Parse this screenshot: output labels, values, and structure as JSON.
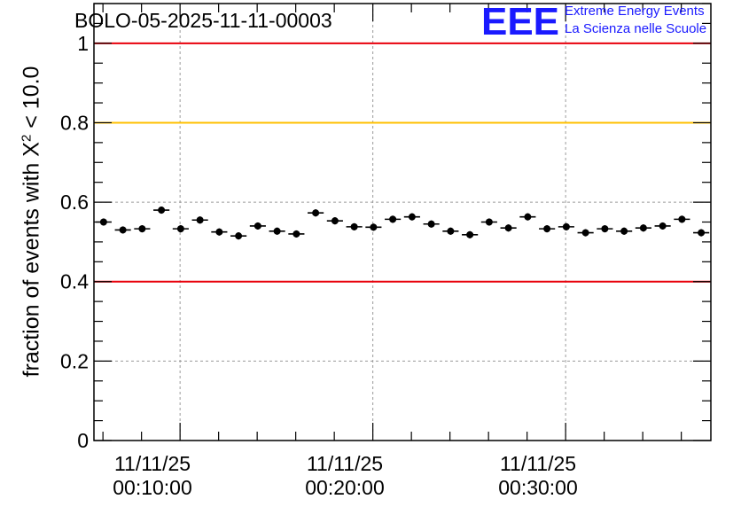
{
  "header": {
    "title": "BOLO-05-2025-11-11-00003",
    "logo_mark": "EEE",
    "logo_line1": "Extreme Energy Events",
    "logo_line2": "La Scienza nelle Scuole"
  },
  "colors": {
    "threshold_red": "#e8000b",
    "threshold_yellow": "#ffc000",
    "points": "#000000",
    "logo": "#1a1aff"
  },
  "chart_data": {
    "type": "scatter",
    "title": "BOLO-05-2025-11-11-00003",
    "ylabel": "fraction of events with X",
    "ylabel_sup": "2",
    "ylabel_tail": " < 10.0",
    "ylim": [
      0,
      1.1
    ],
    "yticks": [
      0,
      0.2,
      0.4,
      0.6,
      0.8,
      1
    ],
    "ytick_labels": [
      "0",
      "0.2",
      "0.4",
      "0.6",
      "0.8",
      "1"
    ],
    "xlim": [
      "00:05:32",
      "00:37:32"
    ],
    "xticks": [
      {
        "time": "00:10:00",
        "date_label": "11/11/25",
        "time_label": "00:10:00"
      },
      {
        "time": "00:20:00",
        "date_label": "11/11/25",
        "time_label": "00:20:00"
      },
      {
        "time": "00:30:00",
        "date_label": "11/11/25",
        "time_label": "00:30:00"
      }
    ],
    "grid": true,
    "threshold_lines": [
      {
        "y": 1.0,
        "color": "#e8000b"
      },
      {
        "y": 0.8,
        "color": "#ffc000"
      },
      {
        "y": 0.4,
        "color": "#e8000b"
      }
    ],
    "series": [
      {
        "x": [
          "00:06:02",
          "00:07:02",
          "00:08:02",
          "00:09:02",
          "00:10:02",
          "00:11:02",
          "00:12:02",
          "00:13:02",
          "00:14:02",
          "00:15:02",
          "00:16:02",
          "00:17:02",
          "00:18:02",
          "00:19:02",
          "00:20:02",
          "00:21:02",
          "00:22:02",
          "00:23:02",
          "00:24:02",
          "00:25:02",
          "00:26:02",
          "00:27:02",
          "00:28:02",
          "00:29:02",
          "00:30:02",
          "00:31:02",
          "00:32:02",
          "00:33:02",
          "00:34:02",
          "00:35:02",
          "00:36:02",
          "00:37:02"
        ],
        "y": [
          0.55,
          0.53,
          0.533,
          0.58,
          0.533,
          0.555,
          0.525,
          0.515,
          0.54,
          0.527,
          0.52,
          0.573,
          0.553,
          0.538,
          0.537,
          0.557,
          0.563,
          0.545,
          0.527,
          0.518,
          0.55,
          0.535,
          0.563,
          0.533,
          0.538,
          0.523,
          0.533,
          0.527,
          0.535,
          0.54,
          0.557,
          0.523
        ],
        "yerr": 0.009,
        "x_half_width_s": 25
      }
    ]
  }
}
